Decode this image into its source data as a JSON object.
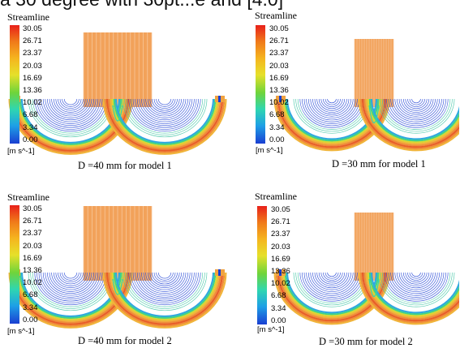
{
  "top_caption": "a 30 degree with 30pt...e and [4.0]",
  "legend": {
    "title": "Streamline",
    "ticks": [
      "30.05",
      "26.71",
      "23.37",
      "20.03",
      "16.69",
      "13.36",
      "10.02",
      "6.68",
      "3.34",
      "0.00"
    ],
    "unit": "[m s^-1]"
  },
  "colors": {
    "max": "#e8201a",
    "high": "#f5a623",
    "mid": "#e6e02a",
    "low_mid": "#49d36a",
    "low": "#1e5fe6"
  },
  "panels": [
    {
      "caption": "D =40 mm for model 1",
      "stem": "wide"
    },
    {
      "caption": "D =30 mm for model 1",
      "stem": "narrow"
    },
    {
      "caption": "D =40 mm for model 2",
      "stem": "wide"
    },
    {
      "caption": "D =30 mm for model 2",
      "stem": "narrow"
    }
  ]
}
